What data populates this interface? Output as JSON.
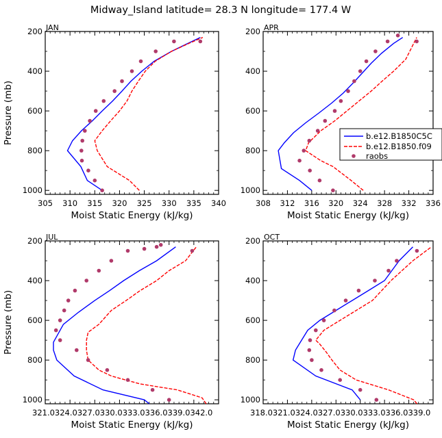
{
  "figure": {
    "title": "Midway_Island   latitude= 28.3 N longitude= 177.4 W"
  },
  "legend": {
    "entries": [
      {
        "label": "b.e12.B1850C5C",
        "style": "solid-line",
        "color": "#0000ff"
      },
      {
        "label": "b.e12.B1850.f09",
        "style": "dashed-line",
        "color": "#ff0000"
      },
      {
        "label": "raobs",
        "style": "marker",
        "color": "#b03a6a"
      }
    ]
  },
  "colors": {
    "model1": "#0000ff",
    "model2": "#ff0000",
    "obs": "#b03a6a"
  },
  "chart_data": [
    {
      "type": "line",
      "panel": "JAN",
      "title": "JAN",
      "xlabel": "Moist Static Energy (kJ/kg)",
      "ylabel": "Pressure (mb)",
      "xlim": [
        305,
        340
      ],
      "ylim": [
        1020,
        200
      ],
      "xticks": [
        305,
        310,
        315,
        320,
        325,
        330,
        335,
        340
      ],
      "xtick_labels": [
        "305",
        "310",
        "315",
        "320",
        "325",
        "330",
        "335",
        "340"
      ],
      "yticks": [
        200,
        400,
        600,
        800,
        1000
      ],
      "ytick_labels": [
        "200",
        "400",
        "600",
        "800",
        "1000"
      ],
      "series": [
        {
          "name": "b.e12.B1850C5C",
          "style": "solid",
          "x": [
            316.5,
            313.5,
            312.2,
            309.5,
            310.5,
            312.3,
            314.5,
            316.5,
            318.6,
            320.5,
            322.3,
            324.5,
            327.0,
            330.5,
            333.8,
            336.3
          ],
          "y": [
            1000,
            950,
            880,
            800,
            750,
            700,
            650,
            600,
            550,
            500,
            450,
            400,
            350,
            300,
            260,
            230
          ]
        },
        {
          "name": "b.e12.B1850.f09",
          "style": "dashed",
          "x": [
            324.0,
            322.0,
            317.5,
            315.5,
            315.0,
            316.5,
            318.2,
            320.0,
            321.5,
            322.5,
            323.8,
            325.2,
            327.2,
            330.5,
            334.0,
            336.8
          ],
          "y": [
            1000,
            950,
            880,
            800,
            750,
            700,
            650,
            600,
            550,
            500,
            450,
            400,
            350,
            300,
            260,
            230
          ]
        },
        {
          "name": "raobs",
          "style": "marker",
          "x": [
            316.5,
            315.0,
            313.7,
            312.4,
            312.3,
            312.5,
            313.0,
            314.0,
            315.2,
            316.8,
            319.0,
            320.5,
            322.5,
            324.3,
            327.3,
            331.0,
            336.3
          ],
          "y": [
            1000,
            950,
            900,
            850,
            800,
            750,
            700,
            650,
            600,
            550,
            500,
            450,
            400,
            350,
            300,
            250,
            250
          ]
        }
      ]
    },
    {
      "type": "line",
      "panel": "APR",
      "title": "APR",
      "xlabel": "Moist Static Energy (kJ/kg)",
      "ylabel": "Pressure (mb)",
      "xlim": [
        308,
        336
      ],
      "ylim": [
        1020,
        200
      ],
      "xticks": [
        308,
        312,
        316,
        320,
        324,
        328,
        332,
        336
      ],
      "xtick_labels": [
        "308",
        "312",
        "316",
        "320",
        "324",
        "328",
        "332",
        "336"
      ],
      "yticks": [
        200,
        400,
        600,
        800,
        1000
      ],
      "ytick_labels": [
        "200",
        "400",
        "600",
        "800",
        "1000"
      ],
      "series": [
        {
          "name": "b.e12.B1850C5C",
          "style": "solid",
          "x": [
            316.0,
            314.0,
            311.0,
            310.5,
            311.5,
            313.0,
            315.0,
            317.2,
            319.3,
            321.2,
            322.8,
            324.3,
            325.8,
            327.5,
            329.5,
            331.0
          ],
          "y": [
            1000,
            950,
            890,
            800,
            760,
            710,
            660,
            610,
            560,
            510,
            460,
            410,
            360,
            310,
            260,
            230
          ]
        },
        {
          "name": "b.e12.B1850.f09",
          "style": "dashed",
          "x": [
            324.5,
            322.5,
            319.5,
            317.5,
            316.0,
            315.0,
            315.5,
            317.5,
            319.8,
            321.8,
            323.8,
            325.8,
            327.6,
            329.5,
            331.5,
            333.3
          ],
          "y": [
            1000,
            950,
            880,
            850,
            820,
            800,
            760,
            700,
            650,
            600,
            550,
            500,
            450,
            400,
            340,
            230
          ]
        },
        {
          "name": "raobs",
          "style": "marker",
          "x": [
            319.5,
            317.3,
            315.7,
            314.0,
            314.7,
            315.6,
            317.0,
            318.2,
            319.8,
            320.8,
            322.0,
            323.0,
            324.0,
            325.0,
            326.5,
            328.5,
            330.2,
            333.3
          ],
          "y": [
            1000,
            950,
            900,
            850,
            800,
            750,
            700,
            650,
            600,
            550,
            500,
            450,
            400,
            350,
            300,
            250,
            220,
            250
          ]
        }
      ]
    },
    {
      "type": "line",
      "panel": "JUL",
      "title": "JUL",
      "xlabel": "Moist Static Energy (kJ/kg)",
      "ylabel": "Pressure (mb)",
      "xlim": [
        321.0,
        342.0
      ],
      "ylim": [
        1020,
        200
      ],
      "xticks": [
        321,
        324,
        327,
        330,
        333,
        336,
        339,
        342
      ],
      "xtick_labels": [
        "321.0",
        "324.0",
        "327.0",
        "330.0",
        "333.0",
        "336.0",
        "339.0",
        "342.0"
      ],
      "tick_labels_overlap": "321.0324.0327.0330.0333.0336.0339.0342.0",
      "yticks": [
        200,
        400,
        600,
        800,
        1000
      ],
      "ytick_labels": [
        "200",
        "400",
        "600",
        "800",
        "1000"
      ],
      "series": [
        {
          "name": "b.e12.B1850C5C",
          "style": "solid",
          "x": [
            333.6,
            333.0,
            328.0,
            324.5,
            322.4,
            322.0,
            322.0,
            323.2,
            325.0,
            327.0,
            328.8,
            330.5,
            332.4,
            334.5,
            336.8
          ],
          "y": [
            1020,
            1000,
            950,
            880,
            800,
            750,
            710,
            620,
            560,
            500,
            450,
            400,
            350,
            300,
            230
          ]
        },
        {
          "name": "b.e12.B1850.f09",
          "style": "dashed",
          "x": [
            340.5,
            340.0,
            337.0,
            332.5,
            329.0,
            327.5,
            326.2,
            326.0,
            326.0,
            326.2,
            327.5,
            329.0,
            330.8,
            332.5,
            334.5,
            336.0,
            338.0,
            339.3
          ],
          "y": [
            1020,
            990,
            950,
            920,
            880,
            850,
            800,
            750,
            700,
            660,
            620,
            550,
            500,
            450,
            400,
            350,
            300,
            230
          ]
        },
        {
          "name": "raobs",
          "style": "marker",
          "x": [
            336.0,
            334.0,
            331.0,
            328.5,
            326.2,
            324.8,
            322.8,
            322.3,
            322.8,
            323.3,
            323.8,
            324.6,
            326.0,
            327.5,
            329.0,
            331.0,
            333.0,
            334.5,
            335.0,
            338.8
          ],
          "y": [
            1000,
            950,
            900,
            850,
            800,
            750,
            700,
            650,
            600,
            550,
            500,
            450,
            400,
            350,
            300,
            250,
            240,
            230,
            220,
            250
          ]
        }
      ]
    },
    {
      "type": "line",
      "panel": "OCT",
      "title": "OCT",
      "xlabel": "Moist Static Energy (kJ/kg)",
      "ylabel": "Pressure (mb)",
      "xlim": [
        318.0,
        339.0
      ],
      "ylim": [
        1020,
        200
      ],
      "xticks": [
        318,
        321,
        324,
        327,
        330,
        333,
        336,
        339
      ],
      "xtick_labels": [
        "318.0",
        "321.0",
        "324.0",
        "327.0",
        "330.0",
        "333.0",
        "336.0",
        "339.0"
      ],
      "tick_labels_overlap": "318.0321.0324.0327.0330.0333.0336.0339.0",
      "yticks": [
        200,
        400,
        600,
        800,
        1000
      ],
      "ytick_labels": [
        "200",
        "400",
        "600",
        "800",
        "1000"
      ],
      "series": [
        {
          "name": "b.e12.B1850C5C",
          "style": "solid",
          "x": [
            330.0,
            329.0,
            324.5,
            321.7,
            322.0,
            322.6,
            323.5,
            325.0,
            327.0,
            329.0,
            331.0,
            333.0,
            334.8,
            336.5
          ],
          "y": [
            1000,
            950,
            880,
            800,
            750,
            710,
            650,
            600,
            550,
            500,
            450,
            400,
            300,
            230
          ]
        },
        {
          "name": "b.e12.B1850.f09",
          "style": "dashed",
          "x": [
            337.0,
            336.6,
            333.5,
            329.5,
            327.5,
            326.5,
            325.8,
            325.0,
            324.5,
            325.5,
            327.5,
            329.5,
            331.5,
            333.8,
            336.5,
            338.8
          ],
          "y": [
            1020,
            1000,
            950,
            900,
            850,
            800,
            760,
            720,
            700,
            650,
            600,
            550,
            500,
            400,
            300,
            230
          ]
        },
        {
          "name": "raobs",
          "style": "marker",
          "x": [
            332.0,
            330.0,
            327.5,
            325.2,
            324.0,
            323.7,
            323.8,
            324.5,
            325.5,
            326.8,
            328.2,
            329.8,
            331.8,
            333.5,
            334.5,
            337.0
          ],
          "y": [
            1000,
            950,
            900,
            850,
            800,
            750,
            700,
            650,
            600,
            550,
            500,
            450,
            400,
            350,
            300,
            250
          ]
        }
      ]
    }
  ]
}
